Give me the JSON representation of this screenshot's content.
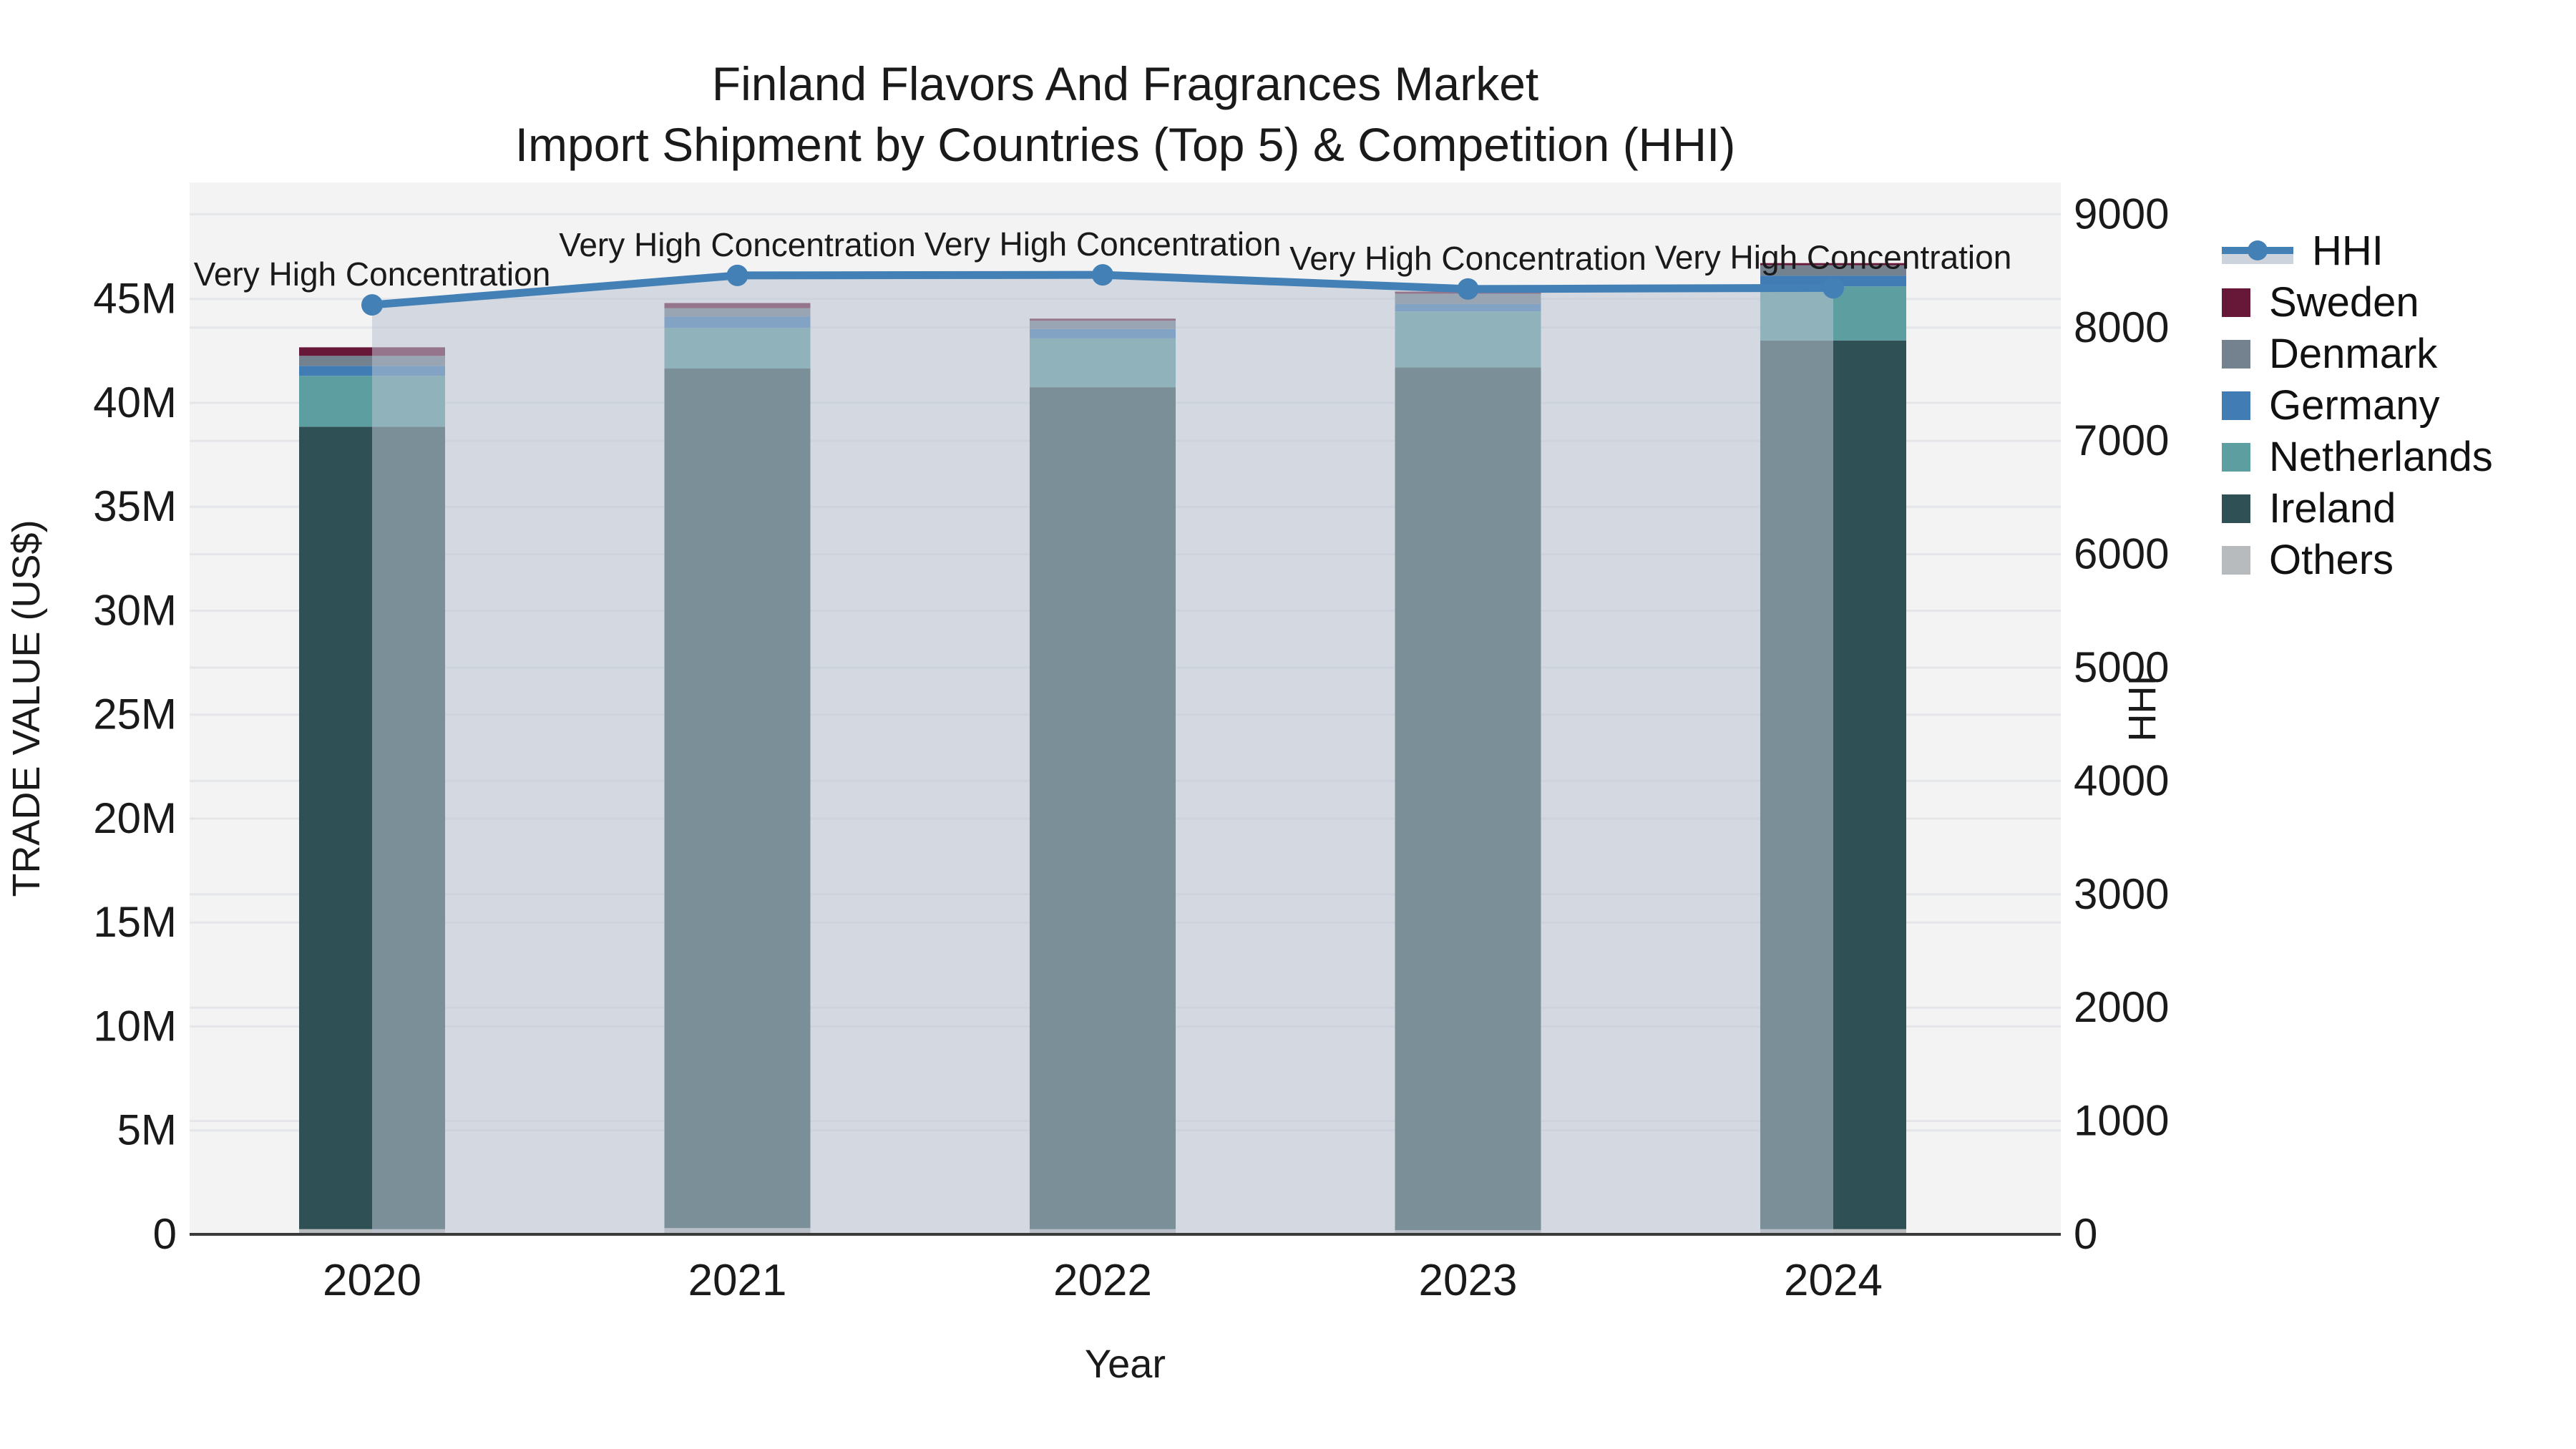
{
  "title": {
    "line1": "Finland Flavors And Fragrances Market",
    "line2": "Import Shipment by Countries (Top 5) & Competition (HHI)"
  },
  "colors": {
    "figure_bg": "#ffffff",
    "plot_bg": "#f3f3f4",
    "gridline": "#e4e6e9",
    "spine": "#3a3a3a",
    "text": "#1a1a1a",
    "hhi_line": "#4380B5",
    "hhi_area_fill": "#B9C3D2"
  },
  "chart_data": {
    "type": "bar",
    "subtype": "stacked-bars-with-dual-axis-line",
    "categories": [
      "2020",
      "2021",
      "2022",
      "2023",
      "2024"
    ],
    "series": [
      {
        "name": "Others",
        "color": "#B8BBBD",
        "values": [
          0.25,
          0.3,
          0.25,
          0.2,
          0.25
        ]
      },
      {
        "name": "Ireland",
        "color": "#2F5054",
        "values": [
          38.6,
          41.35,
          40.5,
          41.5,
          42.75
        ]
      },
      {
        "name": "Netherlands",
        "color": "#5D9EA0",
        "values": [
          2.45,
          1.95,
          2.35,
          2.7,
          2.6
        ]
      },
      {
        "name": "Germany",
        "color": "#427CB4",
        "values": [
          0.48,
          0.55,
          0.45,
          0.35,
          0.52
        ]
      },
      {
        "name": "Denmark",
        "color": "#74818F",
        "values": [
          0.48,
          0.4,
          0.4,
          0.5,
          0.5
        ]
      },
      {
        "name": "Sweden",
        "color": "#671838",
        "values": [
          0.41,
          0.25,
          0.1,
          0.1,
          0.1
        ]
      }
    ],
    "totals_usd_m": [
      42.7,
      44.8,
      44.0,
      45.4,
      46.7
    ],
    "line_series": {
      "name": "HHI",
      "color": "#4380B5",
      "area_fill": "#B9C3D2",
      "values": [
        8200,
        8460,
        8465,
        8340,
        8350
      ]
    },
    "annotations": [
      "Very High Concentration",
      "Very High Concentration",
      "Very High Concentration",
      "Very High Concentration",
      "Very High Concentration"
    ],
    "title": "Finland Flavors And Fragrances Market\nImport Shipment by Countries (Top 5) & Competition (HHI)",
    "xlabel": "Year",
    "ylabel_left": "TRADE VALUE (US$)",
    "ylabel_right": "HHI",
    "left_axis": {
      "label": "TRADE VALUE (US$)",
      "ylim": [
        0,
        50.6
      ],
      "ticks": [
        {
          "label": "0",
          "value": 0
        },
        {
          "label": "5M",
          "value": 5
        },
        {
          "label": "10M",
          "value": 10
        },
        {
          "label": "15M",
          "value": 15
        },
        {
          "label": "20M",
          "value": 20
        },
        {
          "label": "25M",
          "value": 25
        },
        {
          "label": "30M",
          "value": 30
        },
        {
          "label": "35M",
          "value": 35
        },
        {
          "label": "40M",
          "value": 40
        },
        {
          "label": "45M",
          "value": 45
        }
      ]
    },
    "right_axis": {
      "label": "HHI",
      "ylim": [
        0,
        9280
      ],
      "ticks": [
        {
          "label": "0",
          "value": 0
        },
        {
          "label": "1000",
          "value": 1000
        },
        {
          "label": "2000",
          "value": 2000
        },
        {
          "label": "3000",
          "value": 3000
        },
        {
          "label": "4000",
          "value": 4000
        },
        {
          "label": "5000",
          "value": 5000
        },
        {
          "label": "6000",
          "value": 6000
        },
        {
          "label": "7000",
          "value": 7000
        },
        {
          "label": "8000",
          "value": 8000
        },
        {
          "label": "9000",
          "value": 9000
        }
      ]
    },
    "x_axis": {
      "label": "Year"
    },
    "grid": true,
    "legend_position": "right"
  },
  "legend": {
    "items": [
      {
        "label": "HHI",
        "type": "line",
        "color": "#4380B5"
      },
      {
        "label": "Sweden",
        "type": "patch",
        "color": "#671838"
      },
      {
        "label": "Denmark",
        "type": "patch",
        "color": "#74818F"
      },
      {
        "label": "Germany",
        "type": "patch",
        "color": "#427CB4"
      },
      {
        "label": "Netherlands",
        "type": "patch",
        "color": "#5D9EA0"
      },
      {
        "label": "Ireland",
        "type": "patch",
        "color": "#2F5054"
      },
      {
        "label": "Others",
        "type": "patch",
        "color": "#B8BBBD"
      }
    ]
  }
}
